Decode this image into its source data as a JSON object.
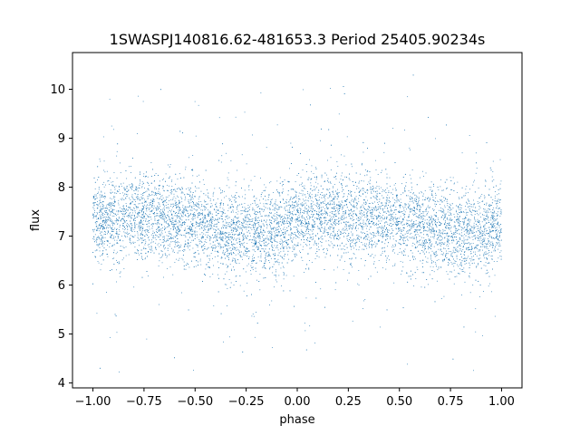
{
  "chart_data": {
    "type": "scatter",
    "title": "1SWASPJ140816.62-481653.3 Period 25405.90234s",
    "xlabel": "phase",
    "ylabel": "flux",
    "xlim": [
      -1.1,
      1.1
    ],
    "ylim": [
      3.9,
      10.75
    ],
    "xticks": [
      -1.0,
      -0.75,
      -0.5,
      -0.25,
      0.0,
      0.25,
      0.5,
      0.75,
      1.0
    ],
    "xtick_labels": [
      "−1.00",
      "−0.75",
      "−0.50",
      "−0.25",
      "0.00",
      "0.25",
      "0.50",
      "0.75",
      "1.00"
    ],
    "yticks": [
      4,
      5,
      6,
      7,
      8,
      9,
      10
    ],
    "ytick_labels": [
      "4",
      "5",
      "6",
      "7",
      "8",
      "9",
      "10"
    ],
    "grid": false,
    "marker_color": "#1f77b4",
    "series": [
      {
        "phase_range": [
          -1.0,
          1.0
        ],
        "mean_flux_curve": {
          "phase": [
            -1.0,
            -0.9,
            -0.8,
            -0.7,
            -0.6,
            -0.5,
            -0.4,
            -0.3,
            -0.2,
            -0.1,
            0.0,
            0.1,
            0.2,
            0.3,
            0.4,
            0.5,
            0.6,
            0.7,
            0.8,
            0.9,
            1.0
          ],
          "flux": [
            7.3,
            7.38,
            7.42,
            7.42,
            7.36,
            7.25,
            7.15,
            7.07,
            7.05,
            7.12,
            7.28,
            7.38,
            7.42,
            7.42,
            7.36,
            7.25,
            7.15,
            7.07,
            7.05,
            7.12,
            7.28
          ]
        },
        "core_scatter_sigma": 0.42,
        "outlier_flux_range": [
          4.2,
          10.3
        ]
      }
    ]
  }
}
